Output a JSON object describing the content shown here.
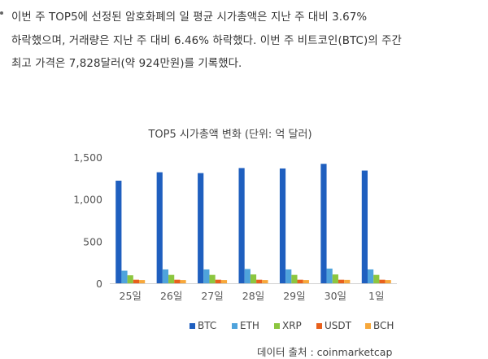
{
  "article": {
    "lines": [
      "이번 주 TOP5에 선정된 암호화폐의 일 평균 시가총액은 지난 주 대비 3.67%",
      "하락했으며, 거래량은 지난 주 대비 6.46% 하락했다. 이번 주 비트코인(BTC)의 주간",
      "최고 가격은 7,828달러(약 924만원)를 기록했다."
    ]
  },
  "source": "데이터 출처 : coinmarketcap",
  "chart_data": {
    "type": "bar",
    "title": "TOP5 시가총액 변화 (단위: 억 달러)",
    "xlabel": "",
    "ylabel": "",
    "categories": [
      "25일",
      "26일",
      "27일",
      "28일",
      "29일",
      "30일",
      "1일"
    ],
    "ylim": [
      0,
      1500
    ],
    "yticks": [
      0,
      500,
      1000,
      1500
    ],
    "ytick_labels": [
      "0",
      "500",
      "1,000",
      "1,500"
    ],
    "grid": false,
    "legend_position": "bottom",
    "series": [
      {
        "name": "BTC",
        "color": "#1f5fbf",
        "values": [
          1220,
          1320,
          1310,
          1370,
          1365,
          1420,
          1340
        ]
      },
      {
        "name": "ETH",
        "color": "#4fa3dc",
        "values": [
          150,
          165,
          165,
          170,
          165,
          175,
          165
        ]
      },
      {
        "name": "XRP",
        "color": "#8cc63f",
        "values": [
          95,
          100,
          100,
          105,
          100,
          105,
          100
        ]
      },
      {
        "name": "USDT",
        "color": "#e8601c",
        "values": [
          42,
          42,
          42,
          42,
          42,
          42,
          42
        ]
      },
      {
        "name": "BCH",
        "color": "#f7a83b",
        "values": [
          38,
          38,
          38,
          38,
          38,
          40,
          38
        ]
      }
    ]
  }
}
